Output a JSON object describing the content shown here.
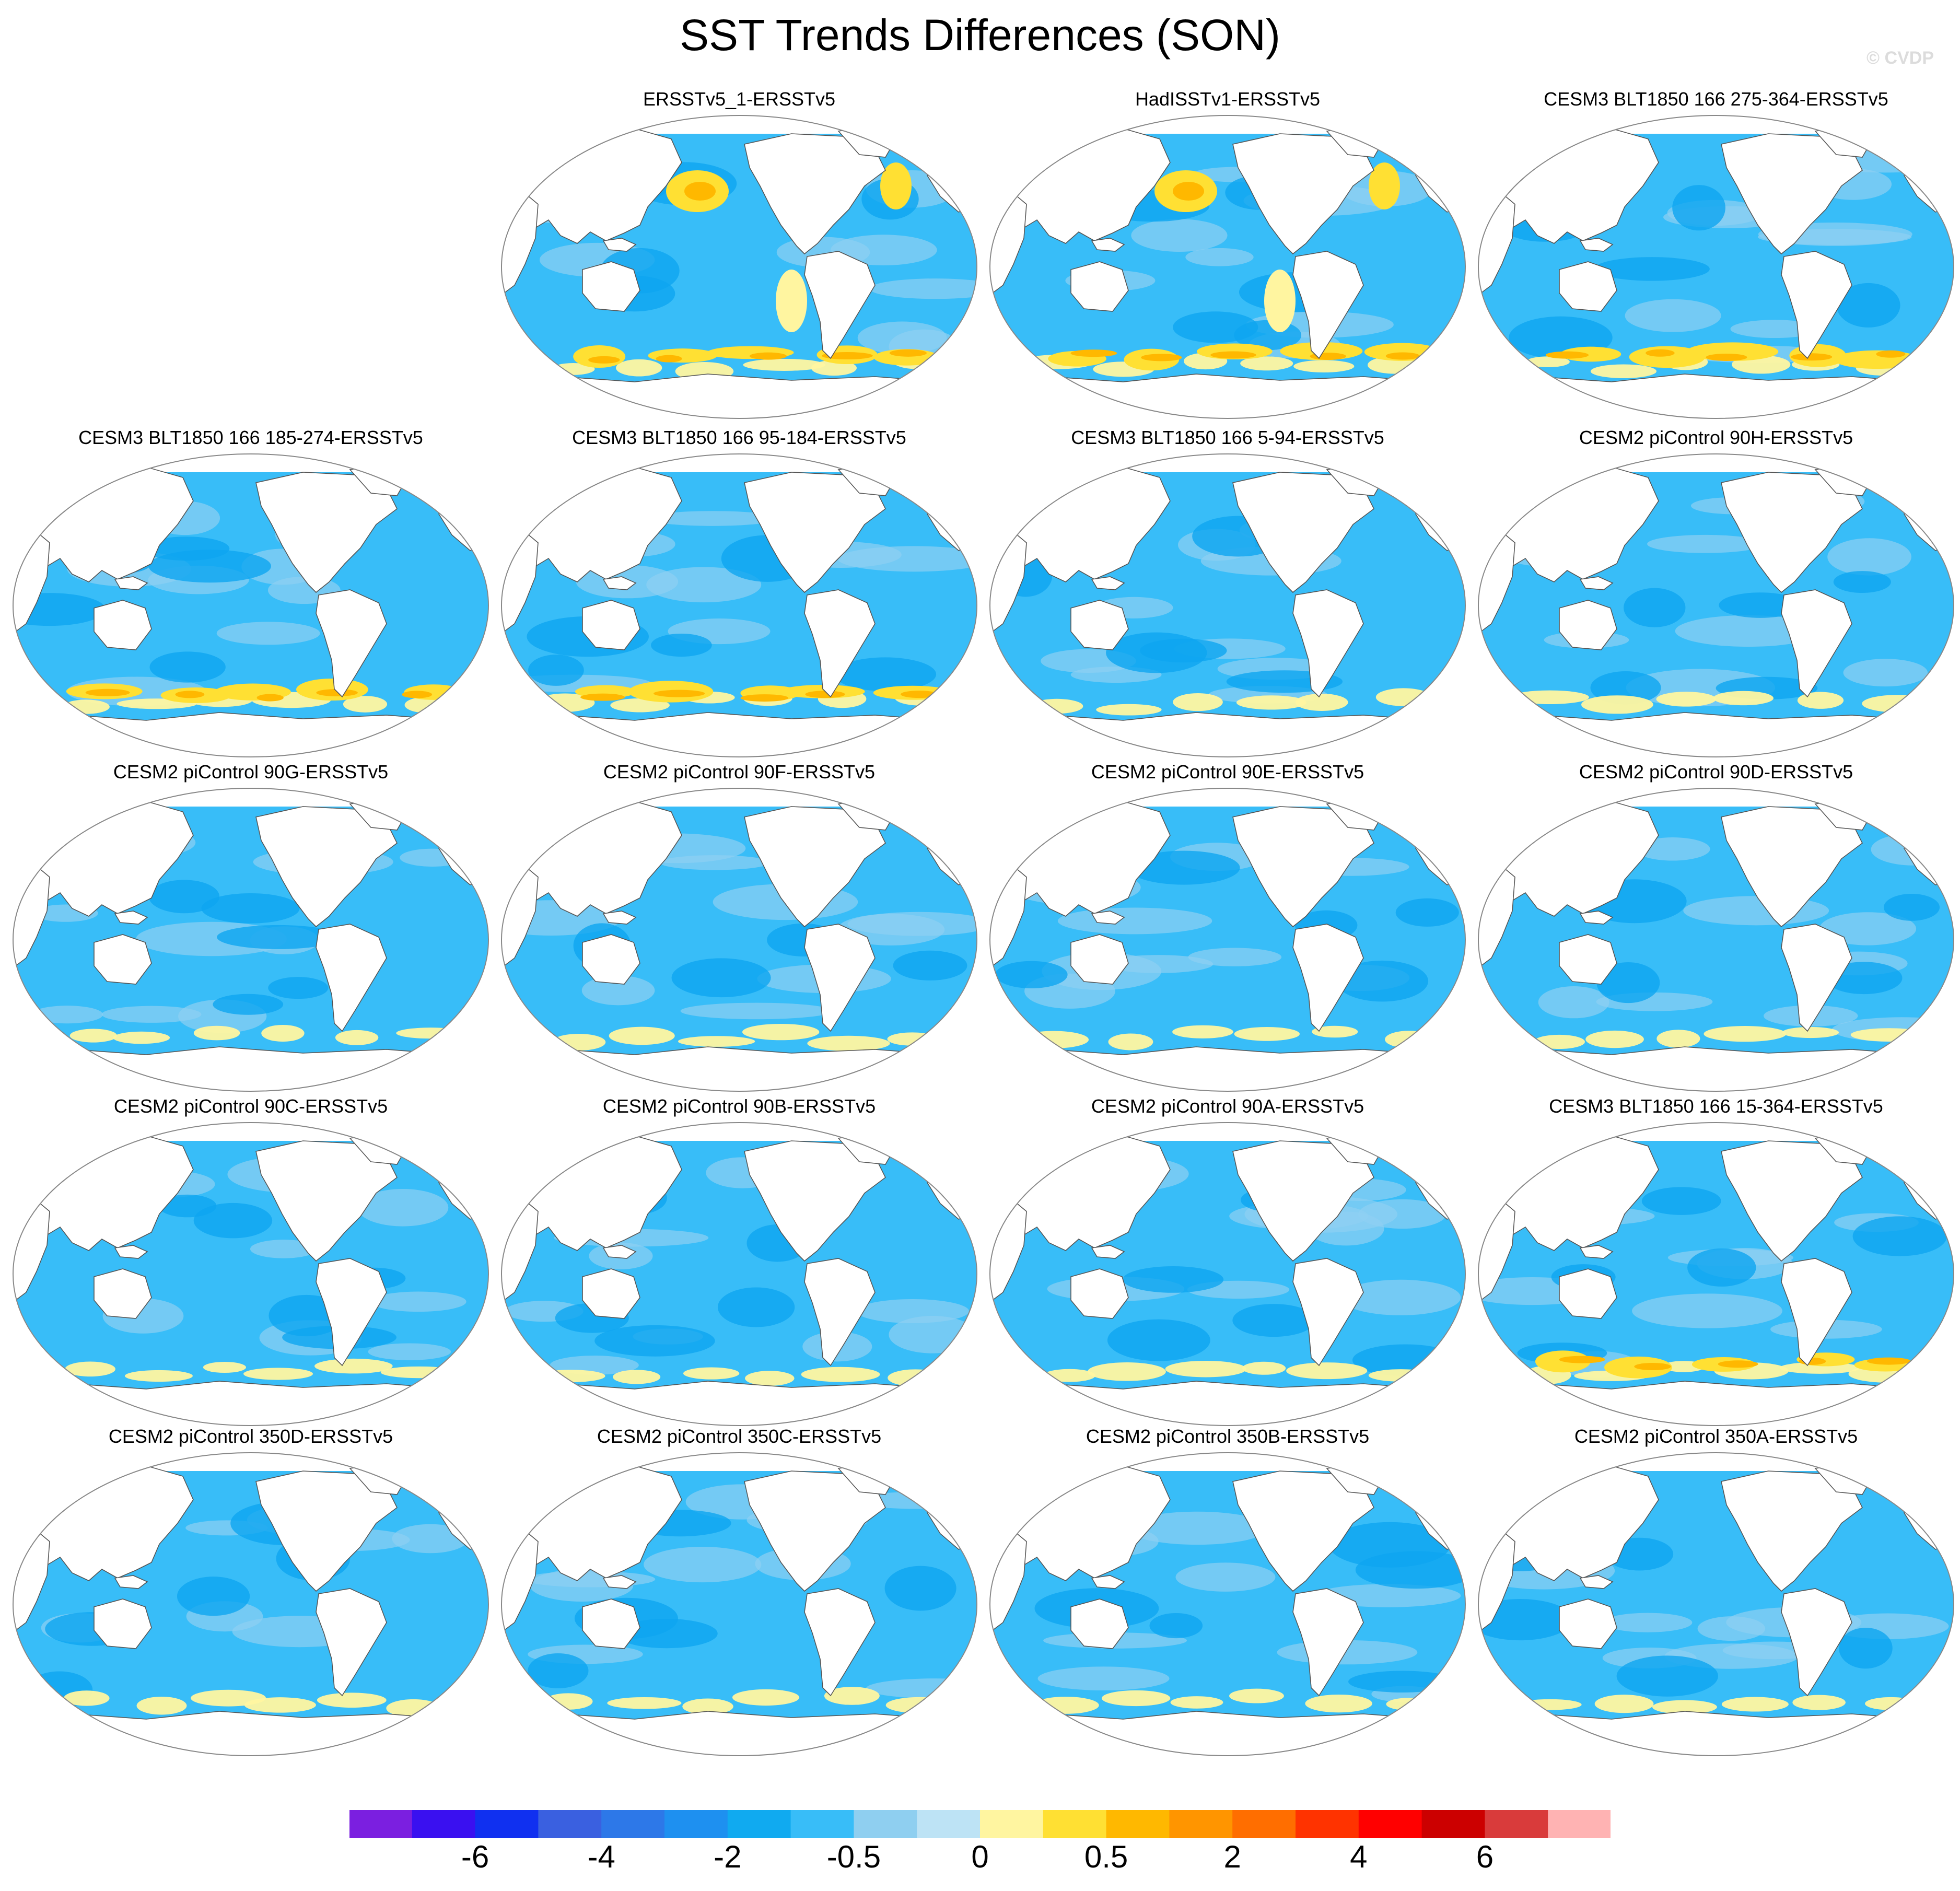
{
  "title": "SST Trends Differences (SON)",
  "copyright": "© CVDP",
  "colors": {
    "ocean_base": "#38bdf8",
    "ocean_deep": "#0ea5f0",
    "ocean_light": "#8fd0f2",
    "land": "#ffffff",
    "coast": "#555555"
  },
  "panels": [
    {
      "label": "ERSSTv5_1-ERSSTv5",
      "warm": 3
    },
    {
      "label": "HadISSTv1-ERSSTv5",
      "warm": 3
    },
    {
      "label": "CESM3 BLT1850 166 275-364-ERSSTv5",
      "warm": 2
    },
    {
      "label": "CESM3 BLT1850 166 185-274-ERSSTv5",
      "warm": 2
    },
    {
      "label": "CESM3 BLT1850 166 95-184-ERSSTv5",
      "warm": 2
    },
    {
      "label": "CESM3 BLT1850 166 5-94-ERSSTv5",
      "warm": 1
    },
    {
      "label": "CESM2 piControl 90H-ERSSTv5",
      "warm": 1
    },
    {
      "label": "CESM2 piControl 90G-ERSSTv5",
      "warm": 1
    },
    {
      "label": "CESM2 piControl 90F-ERSSTv5",
      "warm": 1
    },
    {
      "label": "CESM2 piControl 90E-ERSSTv5",
      "warm": 1
    },
    {
      "label": "CESM2 piControl 90D-ERSSTv5",
      "warm": 1
    },
    {
      "label": "CESM2 piControl 90C-ERSSTv5",
      "warm": 1
    },
    {
      "label": "CESM2 piControl 90B-ERSSTv5",
      "warm": 1
    },
    {
      "label": "CESM2 piControl 90A-ERSSTv5",
      "warm": 1
    },
    {
      "label": "CESM3 BLT1850 166 15-364-ERSSTv5",
      "warm": 2
    },
    {
      "label": "CESM2 piControl 350D-ERSSTv5",
      "warm": 1
    },
    {
      "label": "CESM2 piControl 350C-ERSSTv5",
      "warm": 1
    },
    {
      "label": "CESM2 piControl 350B-ERSSTv5",
      "warm": 1
    },
    {
      "label": "CESM2 piControl 350A-ERSSTv5",
      "warm": 1
    }
  ],
  "colorbar": {
    "colors": [
      "#7b1fe0",
      "#3a10f0",
      "#1030f0",
      "#3a60e0",
      "#2d78e8",
      "#1e90f0",
      "#10aaf0",
      "#38bdf8",
      "#8fcff0",
      "#bde3f5",
      "#fff5a0",
      "#ffe033",
      "#ffb800",
      "#ff9500",
      "#ff6e00",
      "#ff3300",
      "#ff0000",
      "#cc0000",
      "#d93b3b",
      "#ffb3b3"
    ],
    "labels": [
      {
        "text": "-6",
        "boundary": 2
      },
      {
        "text": "-4",
        "boundary": 4
      },
      {
        "text": "-2",
        "boundary": 6
      },
      {
        "text": "-0.5",
        "boundary": 8
      },
      {
        "text": "0",
        "boundary": 10
      },
      {
        "text": "0.5",
        "boundary": 12
      },
      {
        "text": "2",
        "boundary": 14
      },
      {
        "text": "4",
        "boundary": 16
      },
      {
        "text": "6",
        "boundary": 18
      }
    ]
  }
}
